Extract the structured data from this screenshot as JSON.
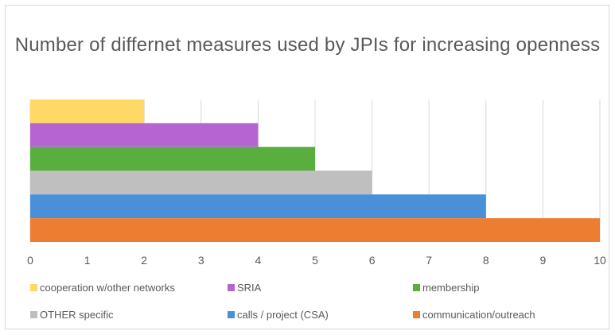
{
  "chart_data": {
    "type": "bar",
    "orientation": "horizontal",
    "title": "Number of differnet measures used by JPIs for increasing openness",
    "xlim": [
      0,
      10
    ],
    "x_ticks": [
      "0",
      "1",
      "2",
      "3",
      "4",
      "5",
      "6",
      "7",
      "8",
      "9",
      "10"
    ],
    "grid": "vertical",
    "legend_position": "bottom",
    "categories": [
      "cooperation w/other networks",
      "SRIA",
      "membership",
      "OTHER specific",
      "calls / project (CSA)",
      "communication/outreach"
    ],
    "values": [
      2,
      4,
      5,
      6,
      8,
      10
    ],
    "colors": [
      "#ffd966",
      "#b565d0",
      "#5aad3f",
      "#bfbfbf",
      "#4a90d9",
      "#ed7d31"
    ]
  }
}
